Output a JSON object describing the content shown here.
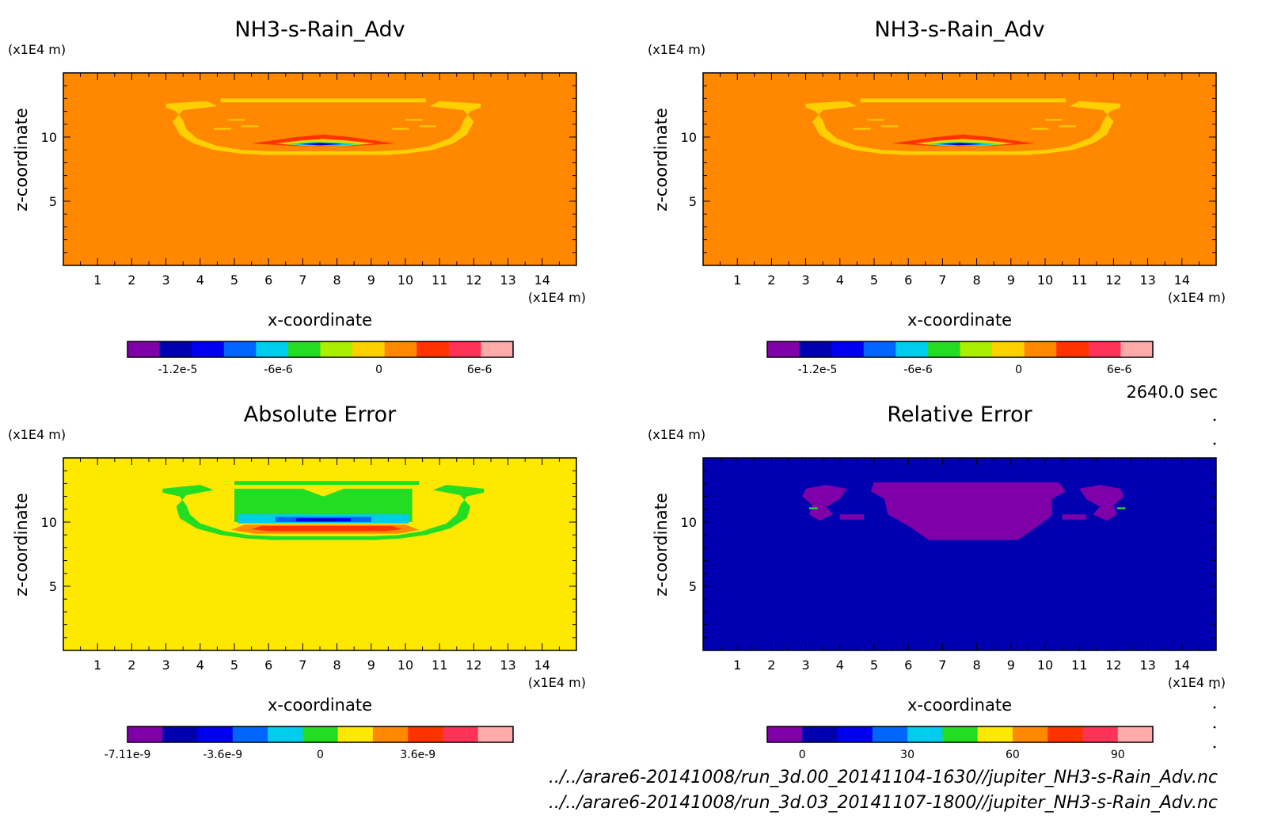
{
  "time_label": "2640.0 sec",
  "paths": [
    "../../arare6-20141008/run_3d.00_20141104-1630//jupiter_NH3-s-Rain_Adv.nc",
    "../../arare6-20141008/run_3d.03_20141107-1800//jupiter_NH3-s-Rain_Adv.nc"
  ],
  "chart_data": [
    {
      "type": "heatmap",
      "title": "NH3-s-Rain_Adv",
      "xlabel": "x-coordinate",
      "ylabel": "z-coordinate",
      "x_unit": "(x1E4 m)",
      "y_unit": "(x1E4 m)",
      "xlim": [
        0,
        15
      ],
      "ylim": [
        0,
        15
      ],
      "x_ticks": [
        "1",
        "2",
        "3",
        "4",
        "5",
        "6",
        "7",
        "8",
        "9",
        "10",
        "11",
        "12",
        "13",
        "14"
      ],
      "y_ticks": [
        "5",
        "10"
      ],
      "background": "#ff8800",
      "colorbar": {
        "colors": [
          "#7f00a8",
          "#0000b0",
          "#0000f0",
          "#0066ff",
          "#00ccee",
          "#22dd22",
          "#aaee00",
          "#ffd000",
          "#ff8800",
          "#ff3300",
          "#ff3355",
          "#ffaaaa"
        ],
        "tick_labels": [
          "-1.2e-5",
          "-6e-6",
          "0",
          "6e-6"
        ],
        "tick_values": [
          -1.2e-05,
          -6e-06,
          0,
          6e-06
        ],
        "range": [
          -1.5e-05,
          8e-06
        ]
      }
    },
    {
      "type": "heatmap",
      "title": "NH3-s-Rain_Adv",
      "xlabel": "x-coordinate",
      "ylabel": "z-coordinate",
      "x_unit": "(x1E4 m)",
      "y_unit": "(x1E4 m)",
      "xlim": [
        0,
        15
      ],
      "ylim": [
        0,
        15
      ],
      "x_ticks": [
        "1",
        "2",
        "3",
        "4",
        "5",
        "6",
        "7",
        "8",
        "9",
        "10",
        "11",
        "12",
        "13",
        "14"
      ],
      "y_ticks": [
        "5",
        "10"
      ],
      "background": "#ff8800",
      "colorbar": {
        "colors": [
          "#7f00a8",
          "#0000b0",
          "#0000f0",
          "#0066ff",
          "#00ccee",
          "#22dd22",
          "#aaee00",
          "#ffd000",
          "#ff8800",
          "#ff3300",
          "#ff3355",
          "#ffaaaa"
        ],
        "tick_labels": [
          "-1.2e-5",
          "-6e-6",
          "0",
          "6e-6"
        ],
        "tick_values": [
          -1.2e-05,
          -6e-06,
          0,
          6e-06
        ],
        "range": [
          -1.5e-05,
          8e-06
        ]
      }
    },
    {
      "type": "heatmap",
      "title": "Absolute Error",
      "xlabel": "x-coordinate",
      "ylabel": "z-coordinate",
      "x_unit": "(x1E4 m)",
      "y_unit": "(x1E4 m)",
      "xlim": [
        0,
        15
      ],
      "ylim": [
        0,
        15
      ],
      "x_ticks": [
        "1",
        "2",
        "3",
        "4",
        "5",
        "6",
        "7",
        "8",
        "9",
        "10",
        "11",
        "12",
        "13",
        "14"
      ],
      "y_ticks": [
        "5",
        "10"
      ],
      "background": "#ffe800",
      "colorbar": {
        "colors": [
          "#7f00a8",
          "#0000b0",
          "#0000f0",
          "#0066ff",
          "#00ccee",
          "#22dd22",
          "#ffe800",
          "#ff8800",
          "#ff3300",
          "#ff3355",
          "#ffaaaa"
        ],
        "tick_labels": [
          "-7.11e-9",
          "-3.6e-9",
          "0",
          "3.6e-9"
        ],
        "tick_values": [
          -7.11e-09,
          -3.6e-09,
          0,
          3.6e-09
        ],
        "range": [
          -7.11e-09,
          7.11e-09
        ]
      }
    },
    {
      "type": "heatmap",
      "title": "Relative Error",
      "xlabel": "x-coordinate",
      "ylabel": "z-coordinate",
      "x_unit": "(x1E4 m)",
      "y_unit": "(x1E4 m)",
      "xlim": [
        0,
        15
      ],
      "ylim": [
        0,
        15
      ],
      "x_ticks": [
        "1",
        "2",
        "3",
        "4",
        "5",
        "6",
        "7",
        "8",
        "9",
        "10",
        "11",
        "12",
        "13",
        "14"
      ],
      "y_ticks": [
        "5",
        "10"
      ],
      "background": "#0000b0",
      "colorbar": {
        "colors": [
          "#7f00a8",
          "#0000b0",
          "#0000f0",
          "#0066ff",
          "#00ccee",
          "#22dd22",
          "#ffe800",
          "#ff8800",
          "#ff3300",
          "#ff3355",
          "#ffaaaa"
        ],
        "tick_labels": [
          "0",
          "30",
          "60",
          "90"
        ],
        "tick_values": [
          0,
          30,
          60,
          90
        ],
        "range": [
          -10,
          100
        ]
      }
    }
  ]
}
